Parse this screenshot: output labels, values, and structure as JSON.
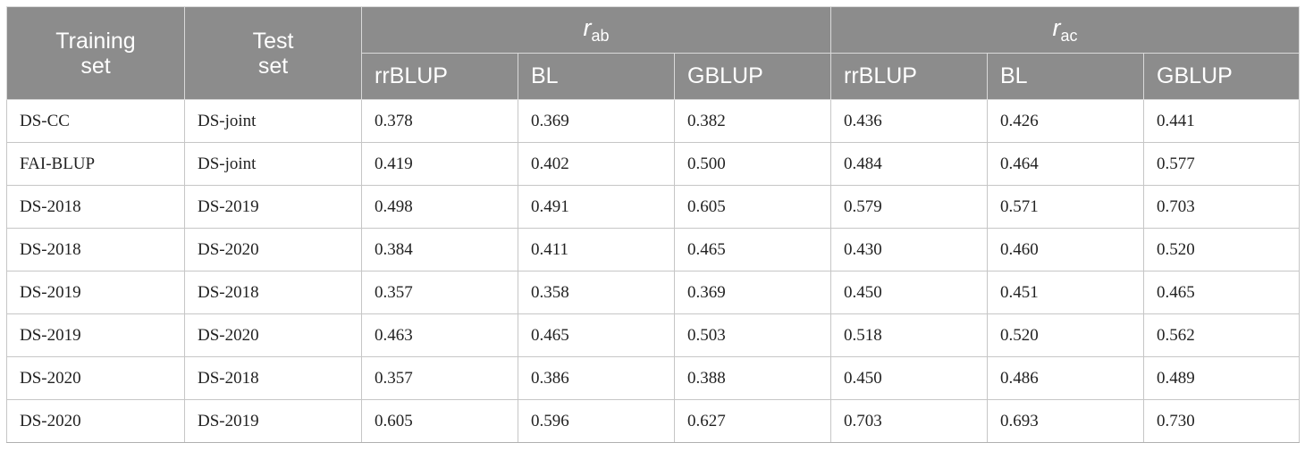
{
  "table": {
    "header": {
      "training_set": [
        "Training",
        "set"
      ],
      "test_set": [
        "Test",
        "set"
      ],
      "groups": [
        {
          "symbol": "r",
          "subscript": "ab"
        },
        {
          "symbol": "r",
          "subscript": "ac"
        }
      ],
      "methods": [
        "rrBLUP",
        "BL",
        "GBLUP",
        "rrBLUP",
        "BL",
        "GBLUP"
      ]
    },
    "rows": [
      [
        "DS-CC",
        "DS-joint",
        "0.378",
        "0.369",
        "0.382",
        "0.436",
        "0.426",
        "0.441"
      ],
      [
        "FAI-BLUP",
        "DS-joint",
        "0.419",
        "0.402",
        "0.500",
        "0.484",
        "0.464",
        "0.577"
      ],
      [
        "DS-2018",
        "DS-2019",
        "0.498",
        "0.491",
        "0.605",
        "0.579",
        "0.571",
        "0.703"
      ],
      [
        "DS-2018",
        "DS-2020",
        "0.384",
        "0.411",
        "0.465",
        "0.430",
        "0.460",
        "0.520"
      ],
      [
        "DS-2019",
        "DS-2018",
        "0.357",
        "0.358",
        "0.369",
        "0.450",
        "0.451",
        "0.465"
      ],
      [
        "DS-2019",
        "DS-2020",
        "0.463",
        "0.465",
        "0.503",
        "0.518",
        "0.520",
        "0.562"
      ],
      [
        "DS-2020",
        "DS-2018",
        "0.357",
        "0.386",
        "0.388",
        "0.450",
        "0.486",
        "0.489"
      ],
      [
        "DS-2020",
        "DS-2019",
        "0.605",
        "0.596",
        "0.627",
        "0.703",
        "0.693",
        "0.730"
      ]
    ]
  }
}
